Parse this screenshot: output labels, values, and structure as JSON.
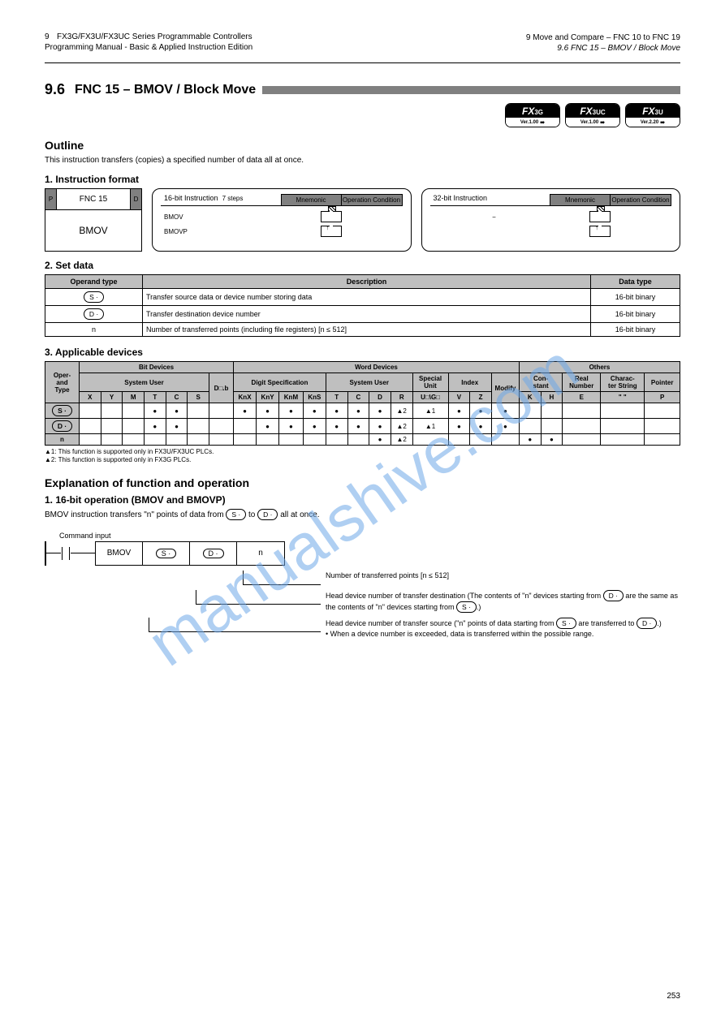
{
  "header": {
    "page_num_top": "9",
    "manual_title_1": "FX3G/FX3U/FX3UC Series Programmable Controllers",
    "manual_title_2": "Programming Manual - Basic & Applied Instruction Edition",
    "chapter_line1": "9 Move and Compare – FNC 10 to FNC 19",
    "chapter_line2": "9.6 FNC 15 – BMOV / Block Move"
  },
  "section": {
    "number": "9.6",
    "title": "FNC 15 – BMOV / Block Move"
  },
  "badges": [
    {
      "model": "FX3G",
      "ver": "Ver.1.00"
    },
    {
      "model": "FX3UC",
      "ver": "Ver.1.00"
    },
    {
      "model": "FX3U",
      "ver": "Ver.2.20"
    }
  ],
  "outline_head": "Outline",
  "outline_body": "This instruction transfers (copies) a specified number of data all at once.",
  "format_head": "1. Instruction format",
  "fnc_box": {
    "top_left": "P",
    "center": "FNC 15",
    "top_right": "D",
    "bottom": "BMOV"
  },
  "op16": {
    "label": "16-bit Instruction",
    "steps": "7 steps",
    "col1": "Mnemonic",
    "col2": "Operation Condition",
    "rows": [
      {
        "mn": "BMOV",
        "cond": "continuous"
      },
      {
        "mn": "BMOVP",
        "cond": "pulse"
      }
    ]
  },
  "op32": {
    "label": "32-bit Instruction",
    "col1": "Mnemonic",
    "col2": "Operation Condition",
    "dash": "−",
    "rows": [
      {
        "mn": "",
        "cond": ""
      },
      {
        "mn": "",
        "cond": ""
      }
    ]
  },
  "setdata": {
    "head": "2. Set data",
    "cols": [
      "Operand type",
      "Description",
      "Data type"
    ],
    "rows": [
      {
        "op": "S ·",
        "oval": true,
        "desc": "Transfer source data or device number storing data",
        "dtype": "16-bit binary"
      },
      {
        "op": "D ·",
        "oval": true,
        "desc": "Transfer destination device number",
        "dtype": "16-bit binary"
      },
      {
        "op": "n",
        "oval": false,
        "desc": "Number of transferred points (including file registers) [n ≤ 512]",
        "dtype": "16-bit binary"
      }
    ]
  },
  "appdev": {
    "head": "3. Applicable devices",
    "group_headers": {
      "oper": "Oper-\nand\nType",
      "bit": "Bit Devices",
      "word": "Word Devices",
      "others": "Others"
    },
    "sub_headers": {
      "bit_sys": "System User",
      "bit_digit": "Digit Specification",
      "word_sys": "System User",
      "word_special": "Special\nUnit",
      "word_index": "Index",
      "const": "Con-\nstant",
      "real": "Real\nNumber",
      "char": "Charac-\nter String",
      "ptr": "Pointer"
    },
    "cols": [
      "X",
      "Y",
      "M",
      "T",
      "C",
      "S",
      "D□.b",
      "KnX",
      "KnY",
      "KnM",
      "KnS",
      "T",
      "C",
      "D",
      "R",
      "U□\\G□",
      "V",
      "Z",
      "Modify",
      "K",
      "H",
      "E",
      "\" \"",
      "P"
    ],
    "rows": [
      {
        "label": "S ·",
        "oval": true,
        "vals": [
          "",
          "",
          "",
          "",
          "",
          "",
          "",
          "",
          "",
          "",
          "",
          "",
          "",
          "",
          "",
          "",
          "",
          "",
          "",
          "",
          "",
          "",
          "",
          ""
        ],
        "marks": {
          "KnX": "●",
          "KnY": "●",
          "KnM": "●",
          "KnS": "●",
          "T": "●",
          "C": "●",
          "D": "●",
          "R": "▲2",
          "U□\\G□": "▲1",
          "V": "●",
          "Z": "●",
          "Modify": "●"
        }
      },
      {
        "label": "D ·",
        "oval": true,
        "vals": [],
        "marks": {
          "KnY": "●",
          "KnM": "●",
          "KnS": "●",
          "T": "●",
          "C": "●",
          "D": "●",
          "R": "▲2",
          "U□\\G□": "▲1",
          "V": "●",
          "Z": "●",
          "Modify": "●"
        }
      },
      {
        "label": "n",
        "oval": false,
        "vals": [],
        "marks": {
          "D": "●",
          "R": "▲2",
          "K": "●",
          "H": "●"
        }
      }
    ],
    "note1": "▲1: This function is supported only in FX3U/FX3UC PLCs.",
    "note2": "▲2: This function is supported only in FX3G PLCs."
  },
  "func_ops": {
    "head": "Explanation of function and operation",
    "sub": "1. 16-bit operation (BMOV and BMOVP)",
    "body": "BMOV instruction transfers \"n\" points of data from  S ·  to  D ·  all at once.",
    "ladder_label": "Command input",
    "instr": [
      "BMOV",
      "S ·",
      "D ·",
      "n"
    ],
    "explain": [
      {
        "branch_from": 3,
        "text": "Number of transferred points [n ≤ 512]"
      },
      {
        "branch_from": 2,
        "text": "Head device number of transfer destination (The contents of \"n\" devices starting from  D ·  are the same as the contents of \"n\" devices starting from  S · .)"
      },
      {
        "branch_from": 1,
        "text": "Head device number of transfer source (\"n\" points of data starting from  S ·  are transferred to  D · .)\n• When a device number is exceeded, data is transferred within the possible range."
      }
    ]
  },
  "footer_page": "253"
}
